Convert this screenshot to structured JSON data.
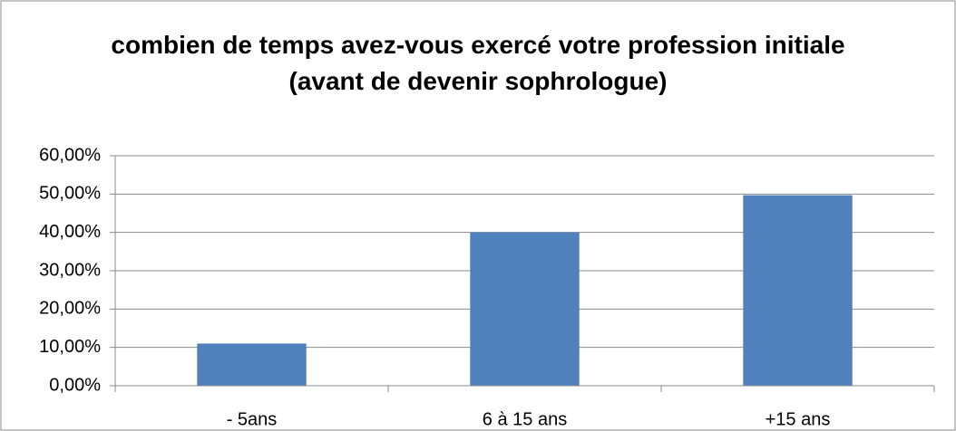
{
  "chart_data": {
    "type": "bar",
    "title": "combien de temps avez-vous exercé votre profession initiale (avant de devenir sophrologue)",
    "categories": [
      "- 5ans",
      "6 à 15 ans",
      "+15 ans"
    ],
    "values": [
      11,
      40,
      49.7
    ],
    "color": "#4f81bd",
    "ylim": [
      0,
      60
    ],
    "yticks": [
      {
        "value": 0,
        "label": "0,00%"
      },
      {
        "value": 10,
        "label": "10,00%"
      },
      {
        "value": 20,
        "label": "20,00%"
      },
      {
        "value": 30,
        "label": "30,00%"
      },
      {
        "value": 40,
        "label": "40,00%"
      },
      {
        "value": 50,
        "label": "50,00%"
      },
      {
        "value": 60,
        "label": "60,00%"
      }
    ],
    "grid": true
  }
}
